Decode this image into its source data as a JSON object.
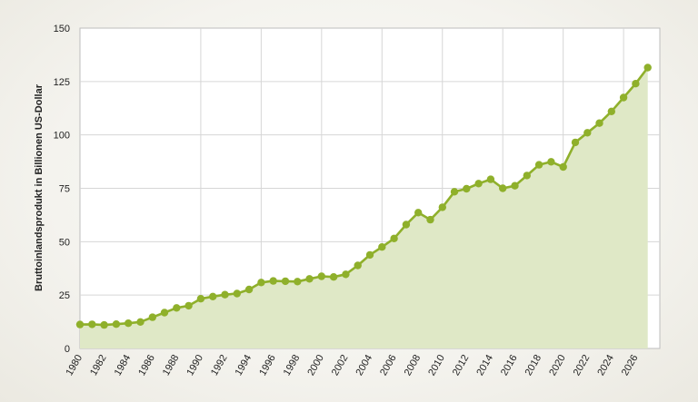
{
  "chart_data": {
    "type": "area",
    "title": "",
    "xlabel": "",
    "ylabel": "Bruttoinlandsprodukt in Billionen US-Dollar",
    "xlim": [
      1980,
      2027
    ],
    "ylim": [
      0,
      150
    ],
    "y_ticks": [
      0,
      25,
      50,
      75,
      100,
      125,
      150
    ],
    "x_ticks": [
      1980,
      1982,
      1984,
      1986,
      1988,
      1990,
      1992,
      1994,
      1996,
      1998,
      2000,
      2002,
      2004,
      2006,
      2008,
      2010,
      2012,
      2014,
      2016,
      2018,
      2020,
      2022,
      2024,
      2026
    ],
    "grid": true,
    "legend": "none",
    "colors": {
      "line": "#8fb02b",
      "fill": "#dde6c3",
      "grid": "#d4d4d4"
    },
    "x": [
      1980,
      1981,
      1982,
      1983,
      1984,
      1985,
      1986,
      1987,
      1988,
      1989,
      1990,
      1991,
      1992,
      1993,
      1994,
      1995,
      1996,
      1997,
      1998,
      1999,
      2000,
      2001,
      2002,
      2003,
      2004,
      2005,
      2006,
      2007,
      2008,
      2009,
      2010,
      2011,
      2012,
      2013,
      2014,
      2015,
      2016,
      2017,
      2018,
      2019,
      2020,
      2021,
      2022,
      2023,
      2024,
      2025,
      2026,
      2027
    ],
    "values": [
      11.2,
      11.3,
      11.0,
      11.4,
      11.8,
      12.4,
      14.6,
      16.8,
      19.0,
      20.0,
      23.3,
      24.3,
      25.2,
      25.7,
      27.6,
      30.9,
      31.6,
      31.5,
      31.3,
      32.6,
      33.8,
      33.5,
      34.7,
      38.9,
      43.8,
      47.5,
      51.5,
      58.0,
      63.6,
      60.3,
      66.1,
      73.4,
      74.8,
      77.2,
      79.2,
      75.0,
      76.2,
      81.0,
      86.0,
      87.4,
      85.0,
      96.5,
      101.0,
      105.5,
      111.0,
      117.5,
      124.0,
      131.5
    ]
  }
}
